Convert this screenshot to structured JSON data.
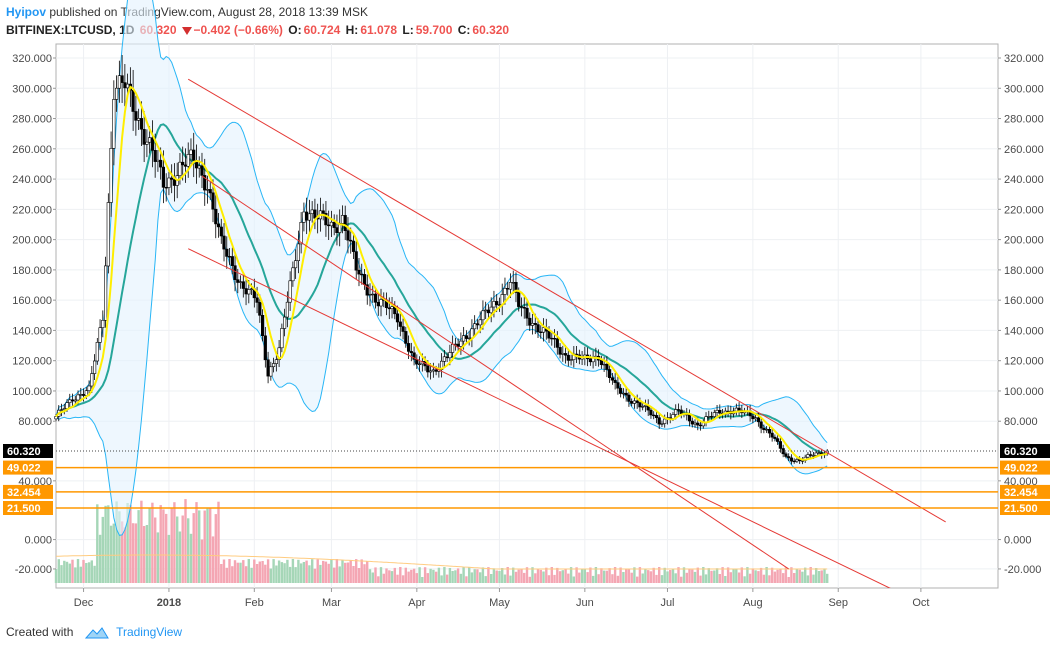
{
  "header": {
    "author": "Hyipov",
    "published_text": "published on TradingView.com, August 28, 2018 13:39 MSK",
    "symbol": "BITFINEX:LTCUSD, 1D",
    "last": "60.320",
    "change": "−0.402 (−0.66%)",
    "open_label": "O:",
    "open": "60.724",
    "high_label": "H:",
    "high": "61.078",
    "low_label": "L:",
    "low": "59.700",
    "close_label": "C:",
    "close": "60.320"
  },
  "footer": {
    "created_with": "Created with",
    "brand": "TradingView"
  },
  "colors": {
    "up": "#ffffff",
    "down": "#000000",
    "wick": "#000000",
    "channel": "#e53935",
    "band": "#29b6f6",
    "band_fill": "#e3f2fd",
    "mid": "#26a69a",
    "fast": "#ffee00",
    "level": "#ff9800",
    "vol_up": "#a5d6b7",
    "vol_down": "#f4a6b3",
    "vol_ma": "#ffcc80"
  },
  "chart_data": {
    "type": "candlestick",
    "y_axis_ticks": [
      "320.000",
      "300.000",
      "280.000",
      "260.000",
      "240.000",
      "220.000",
      "200.000",
      "180.000",
      "160.000",
      "140.000",
      "120.000",
      "100.000",
      "80.000",
      "40.000",
      "0.000",
      "-20.000"
    ],
    "x_axis_labels": [
      "Dec",
      "2018",
      "Feb",
      "Mar",
      "Apr",
      "May",
      "Jun",
      "Jul",
      "Aug",
      "Sep",
      "Oct"
    ],
    "last_price": "60.320",
    "levels": [
      {
        "value": 49.022,
        "label": "49.022"
      },
      {
        "value": 32.454,
        "label": "32.454"
      },
      {
        "value": 21.5,
        "label": "21.500"
      }
    ],
    "channel_lines": [
      {
        "x1": "2018-01-08",
        "y1": 306,
        "x2": "2018-10-10",
        "y2": 12
      },
      {
        "x1": "2018-01-08",
        "y1": 194,
        "x2": "2018-10-04",
        "y2": -46
      },
      {
        "x1": "2018-01-13",
        "y1": 242,
        "x2": "2018-08-14",
        "y2": -20
      }
    ],
    "price_path": [
      [
        "2017-11-21",
        82
      ],
      [
        "2017-11-27",
        96
      ],
      [
        "2017-12-03",
        100
      ],
      [
        "2017-12-08",
        150
      ],
      [
        "2017-12-12",
        300
      ],
      [
        "2017-12-16",
        300
      ],
      [
        "2017-12-20",
        285
      ],
      [
        "2017-12-25",
        262
      ],
      [
        "2017-12-30",
        236
      ],
      [
        "2018-01-05",
        248
      ],
      [
        "2018-01-10",
        252
      ],
      [
        "2018-01-15",
        238
      ],
      [
        "2018-01-20",
        196
      ],
      [
        "2018-01-27",
        172
      ],
      [
        "2018-02-02",
        158
      ],
      [
        "2018-02-06",
        112
      ],
      [
        "2018-02-10",
        128
      ],
      [
        "2018-02-15",
        178
      ],
      [
        "2018-02-19",
        222
      ],
      [
        "2018-02-23",
        214
      ],
      [
        "2018-03-01",
        210
      ],
      [
        "2018-03-05",
        214
      ],
      [
        "2018-03-10",
        180
      ],
      [
        "2018-03-18",
        158
      ],
      [
        "2018-03-25",
        150
      ],
      [
        "2018-03-31",
        118
      ],
      [
        "2018-04-07",
        114
      ],
      [
        "2018-04-12",
        122
      ],
      [
        "2018-04-18",
        136
      ],
      [
        "2018-04-25",
        148
      ],
      [
        "2018-05-05",
        172
      ],
      [
        "2018-05-08",
        156
      ],
      [
        "2018-05-15",
        142
      ],
      [
        "2018-05-25",
        124
      ],
      [
        "2018-06-01",
        120
      ],
      [
        "2018-06-06",
        124
      ],
      [
        "2018-06-12",
        102
      ],
      [
        "2018-06-20",
        92
      ],
      [
        "2018-06-28",
        80
      ],
      [
        "2018-07-05",
        86
      ],
      [
        "2018-07-12",
        78
      ],
      [
        "2018-07-20",
        86
      ],
      [
        "2018-07-25",
        88
      ],
      [
        "2018-08-02",
        82
      ],
      [
        "2018-08-08",
        70
      ],
      [
        "2018-08-13",
        56
      ],
      [
        "2018-08-18",
        54
      ],
      [
        "2018-08-24",
        58
      ],
      [
        "2018-08-28",
        60.32
      ]
    ]
  }
}
